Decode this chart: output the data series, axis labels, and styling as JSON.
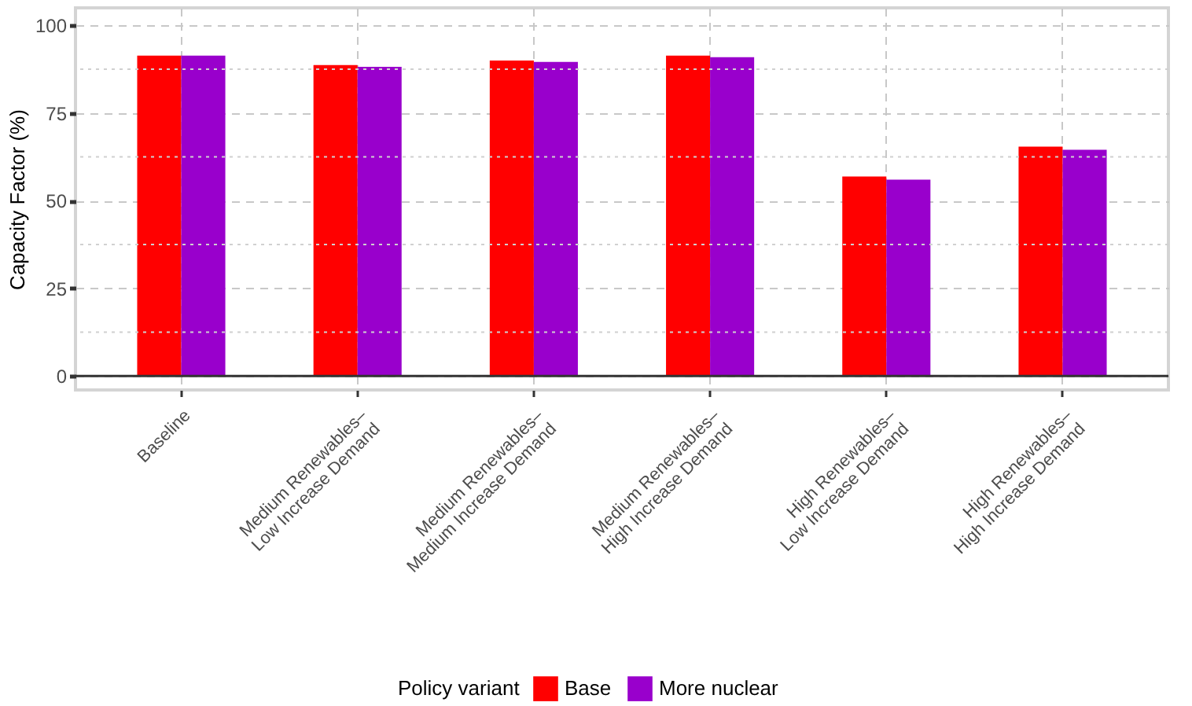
{
  "chart_data": {
    "type": "bar",
    "ylabel": "Capacity Factor (%)",
    "legend_title": "Policy variant",
    "categories": [
      "Baseline",
      "Medium Renewables–\nLow Increase Demand",
      "Medium Renewables–\nMedium Increase Demand",
      "Medium Renewables–\nHigh Increase Demand",
      "High Renewables–\nLow Increase Demand",
      "High Renewables–\nHigh Increase Demand"
    ],
    "series": [
      {
        "name": "Base",
        "color": "#ff0000",
        "values": [
          91.4,
          88.7,
          90.0,
          91.4,
          56.9,
          65.4
        ]
      },
      {
        "name": "More nuclear",
        "color": "#9900cc",
        "values": [
          91.4,
          88.2,
          89.6,
          90.9,
          56.0,
          64.5
        ]
      }
    ],
    "ylim": [
      -4,
      105
    ],
    "yticks": [
      0,
      25,
      50,
      75,
      100
    ],
    "grid": true,
    "legend": "bottom",
    "ref_lines": [
      {
        "axis": "y",
        "value": 0,
        "color": "#333333"
      }
    ]
  }
}
